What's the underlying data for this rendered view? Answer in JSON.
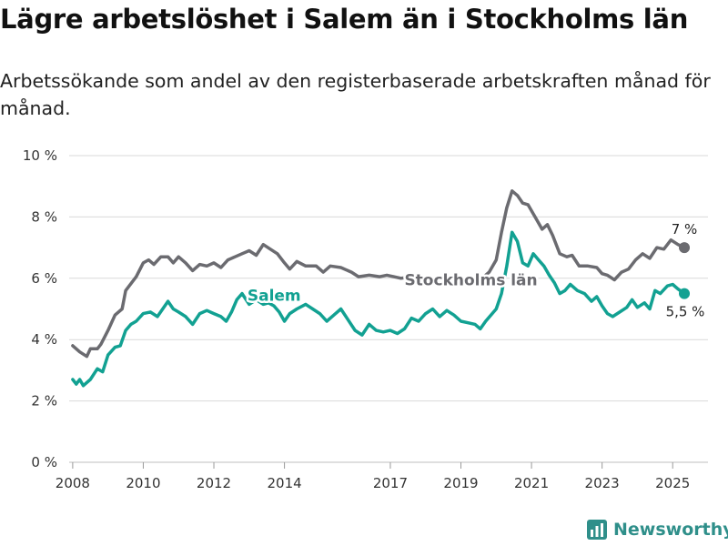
{
  "header": {
    "title": "Lägre arbetslöshet i Salem än i Stockholms län",
    "subtitle": "Arbetssökande som andel av den registerbaserade arbetskraften månad för månad."
  },
  "logo": {
    "text": "Newsworthy",
    "icon": "bar-chart-icon"
  },
  "colors": {
    "stockholm": "#6b6b70",
    "salem": "#12a192",
    "grid": "#d9d9d9",
    "logo": "#2f8f8a"
  },
  "chart_data": {
    "type": "line",
    "title": "Lägre arbetslöshet i Salem än i Stockholms län",
    "subtitle": "Arbetssökande som andel av den registerbaserade arbetskraften månad för månad.",
    "xlim": [
      2007.9,
      2026.0
    ],
    "ylim": [
      0,
      10
    ],
    "y_ticks": [
      0,
      2,
      4,
      6,
      8,
      10
    ],
    "y_tick_labels": [
      "0 %",
      "2 %",
      "4 %",
      "6 %",
      "8 %",
      "10 %"
    ],
    "x_ticks": [
      2008,
      2010,
      2012,
      2014,
      2017,
      2019,
      2021,
      2023,
      2025
    ],
    "x_tick_labels": [
      "2008",
      "2010",
      "2012",
      "2014",
      "2017",
      "2019",
      "2021",
      "2023",
      "2025"
    ],
    "grid": true,
    "series": [
      {
        "name": "Stockholms län",
        "label": "Stockholms län",
        "end_label": "7 %",
        "points": [
          [
            2008.0,
            3.8
          ],
          [
            2008.2,
            3.6
          ],
          [
            2008.4,
            3.45
          ],
          [
            2008.5,
            3.7
          ],
          [
            2008.7,
            3.7
          ],
          [
            2008.8,
            3.85
          ],
          [
            2009.0,
            4.3
          ],
          [
            2009.2,
            4.8
          ],
          [
            2009.4,
            5.0
          ],
          [
            2009.5,
            5.6
          ],
          [
            2009.7,
            5.9
          ],
          [
            2009.8,
            6.05
          ],
          [
            2010.0,
            6.5
          ],
          [
            2010.15,
            6.6
          ],
          [
            2010.3,
            6.45
          ],
          [
            2010.5,
            6.7
          ],
          [
            2010.7,
            6.7
          ],
          [
            2010.85,
            6.5
          ],
          [
            2011.0,
            6.7
          ],
          [
            2011.2,
            6.5
          ],
          [
            2011.4,
            6.25
          ],
          [
            2011.6,
            6.45
          ],
          [
            2011.8,
            6.4
          ],
          [
            2012.0,
            6.5
          ],
          [
            2012.2,
            6.35
          ],
          [
            2012.4,
            6.6
          ],
          [
            2012.6,
            6.7
          ],
          [
            2012.8,
            6.8
          ],
          [
            2013.0,
            6.9
          ],
          [
            2013.2,
            6.75
          ],
          [
            2013.4,
            7.1
          ],
          [
            2013.6,
            6.95
          ],
          [
            2013.8,
            6.8
          ],
          [
            2014.0,
            6.5
          ],
          [
            2014.15,
            6.3
          ],
          [
            2014.35,
            6.55
          ],
          [
            2014.6,
            6.4
          ],
          [
            2014.9,
            6.4
          ],
          [
            2015.1,
            6.2
          ],
          [
            2015.3,
            6.4
          ],
          [
            2015.6,
            6.35
          ],
          [
            2015.9,
            6.2
          ],
          [
            2016.1,
            6.05
          ],
          [
            2016.4,
            6.1
          ],
          [
            2016.7,
            6.05
          ],
          [
            2016.9,
            6.1
          ],
          [
            2017.1,
            6.05
          ],
          [
            2017.3,
            6.0
          ],
          [
            2017.6,
            6.05
          ],
          [
            2017.9,
            5.95
          ],
          [
            2018.2,
            6.0
          ],
          [
            2018.6,
            5.95
          ],
          [
            2019.0,
            5.9
          ],
          [
            2019.3,
            5.85
          ],
          [
            2019.6,
            6.0
          ],
          [
            2019.8,
            6.2
          ],
          [
            2020.0,
            6.6
          ],
          [
            2020.15,
            7.5
          ],
          [
            2020.3,
            8.3
          ],
          [
            2020.45,
            8.85
          ],
          [
            2020.6,
            8.7
          ],
          [
            2020.75,
            8.45
          ],
          [
            2020.9,
            8.4
          ],
          [
            2021.1,
            8.0
          ],
          [
            2021.3,
            7.6
          ],
          [
            2021.45,
            7.75
          ],
          [
            2021.6,
            7.4
          ],
          [
            2021.8,
            6.8
          ],
          [
            2022.0,
            6.7
          ],
          [
            2022.15,
            6.75
          ],
          [
            2022.35,
            6.4
          ],
          [
            2022.6,
            6.4
          ],
          [
            2022.85,
            6.35
          ],
          [
            2023.0,
            6.15
          ],
          [
            2023.15,
            6.1
          ],
          [
            2023.35,
            5.95
          ],
          [
            2023.55,
            6.2
          ],
          [
            2023.75,
            6.3
          ],
          [
            2023.95,
            6.6
          ],
          [
            2024.15,
            6.8
          ],
          [
            2024.35,
            6.65
          ],
          [
            2024.55,
            7.0
          ],
          [
            2024.75,
            6.95
          ],
          [
            2024.95,
            7.25
          ],
          [
            2025.15,
            7.1
          ],
          [
            2025.33,
            7.0
          ]
        ]
      },
      {
        "name": "Salem",
        "label": "Salem",
        "end_label": "5,5 %",
        "points": [
          [
            2008.0,
            2.7
          ],
          [
            2008.1,
            2.55
          ],
          [
            2008.2,
            2.7
          ],
          [
            2008.3,
            2.5
          ],
          [
            2008.5,
            2.7
          ],
          [
            2008.7,
            3.05
          ],
          [
            2008.85,
            2.95
          ],
          [
            2009.0,
            3.5
          ],
          [
            2009.2,
            3.75
          ],
          [
            2009.35,
            3.8
          ],
          [
            2009.5,
            4.3
          ],
          [
            2009.65,
            4.5
          ],
          [
            2009.8,
            4.6
          ],
          [
            2010.0,
            4.85
          ],
          [
            2010.2,
            4.9
          ],
          [
            2010.4,
            4.75
          ],
          [
            2010.55,
            5.0
          ],
          [
            2010.7,
            5.25
          ],
          [
            2010.85,
            5.0
          ],
          [
            2011.0,
            4.9
          ],
          [
            2011.2,
            4.75
          ],
          [
            2011.4,
            4.5
          ],
          [
            2011.6,
            4.85
          ],
          [
            2011.8,
            4.95
          ],
          [
            2012.0,
            4.85
          ],
          [
            2012.2,
            4.75
          ],
          [
            2012.35,
            4.6
          ],
          [
            2012.5,
            4.9
          ],
          [
            2012.65,
            5.3
          ],
          [
            2012.8,
            5.5
          ],
          [
            2013.0,
            5.15
          ],
          [
            2013.2,
            5.3
          ],
          [
            2013.4,
            5.15
          ],
          [
            2013.55,
            5.2
          ],
          [
            2013.7,
            5.1
          ],
          [
            2013.85,
            4.9
          ],
          [
            2014.0,
            4.6
          ],
          [
            2014.15,
            4.85
          ],
          [
            2014.35,
            5.0
          ],
          [
            2014.6,
            5.15
          ],
          [
            2014.8,
            5.0
          ],
          [
            2015.0,
            4.85
          ],
          [
            2015.2,
            4.6
          ],
          [
            2015.4,
            4.8
          ],
          [
            2015.6,
            5.0
          ],
          [
            2015.8,
            4.65
          ],
          [
            2016.0,
            4.3
          ],
          [
            2016.2,
            4.15
          ],
          [
            2016.4,
            4.5
          ],
          [
            2016.6,
            4.3
          ],
          [
            2016.8,
            4.25
          ],
          [
            2017.0,
            4.3
          ],
          [
            2017.2,
            4.2
          ],
          [
            2017.4,
            4.35
          ],
          [
            2017.6,
            4.7
          ],
          [
            2017.8,
            4.6
          ],
          [
            2018.0,
            4.85
          ],
          [
            2018.2,
            5.0
          ],
          [
            2018.4,
            4.75
          ],
          [
            2018.6,
            4.95
          ],
          [
            2018.8,
            4.8
          ],
          [
            2019.0,
            4.6
          ],
          [
            2019.2,
            4.55
          ],
          [
            2019.4,
            4.5
          ],
          [
            2019.55,
            4.35
          ],
          [
            2019.7,
            4.6
          ],
          [
            2019.85,
            4.8
          ],
          [
            2020.0,
            5.0
          ],
          [
            2020.15,
            5.5
          ],
          [
            2020.3,
            6.4
          ],
          [
            2020.45,
            7.5
          ],
          [
            2020.6,
            7.2
          ],
          [
            2020.75,
            6.5
          ],
          [
            2020.9,
            6.4
          ],
          [
            2021.05,
            6.8
          ],
          [
            2021.2,
            6.6
          ],
          [
            2021.35,
            6.4
          ],
          [
            2021.5,
            6.1
          ],
          [
            2021.65,
            5.85
          ],
          [
            2021.8,
            5.5
          ],
          [
            2021.95,
            5.6
          ],
          [
            2022.1,
            5.8
          ],
          [
            2022.3,
            5.6
          ],
          [
            2022.5,
            5.5
          ],
          [
            2022.7,
            5.25
          ],
          [
            2022.85,
            5.4
          ],
          [
            2023.0,
            5.1
          ],
          [
            2023.15,
            4.85
          ],
          [
            2023.3,
            4.75
          ],
          [
            2023.5,
            4.9
          ],
          [
            2023.7,
            5.05
          ],
          [
            2023.85,
            5.3
          ],
          [
            2024.0,
            5.05
          ],
          [
            2024.2,
            5.2
          ],
          [
            2024.35,
            5.0
          ],
          [
            2024.5,
            5.6
          ],
          [
            2024.65,
            5.5
          ],
          [
            2024.85,
            5.75
          ],
          [
            2025.0,
            5.8
          ],
          [
            2025.15,
            5.65
          ],
          [
            2025.33,
            5.5
          ]
        ]
      }
    ]
  }
}
